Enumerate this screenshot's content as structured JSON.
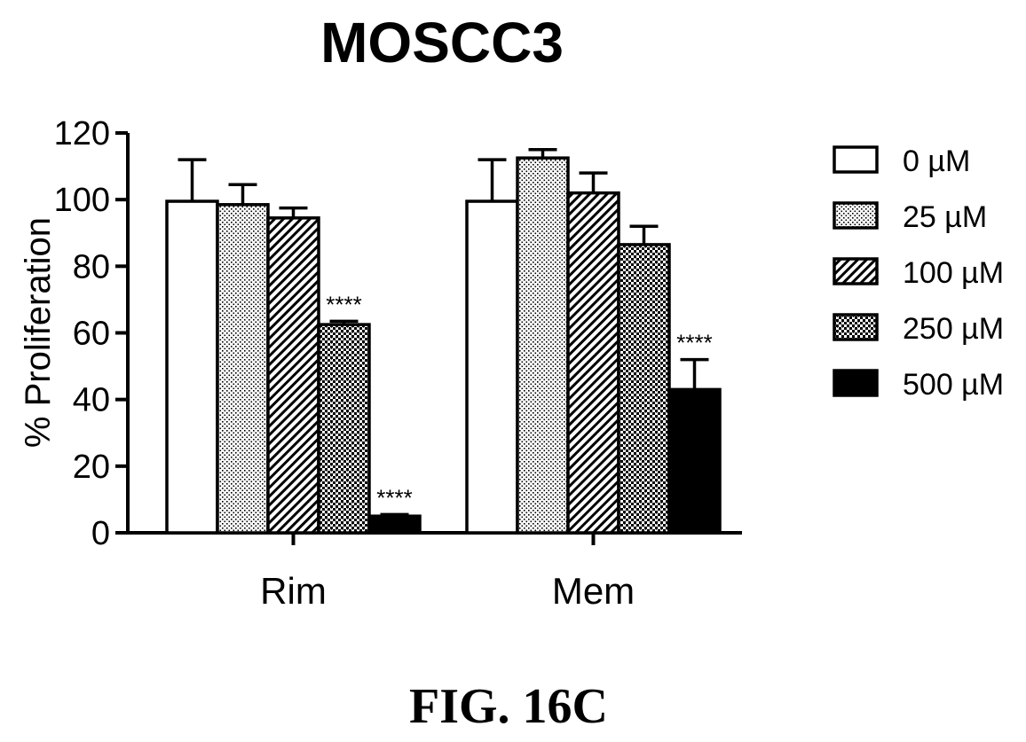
{
  "chart_data": {
    "type": "bar",
    "title": "MOSCC3",
    "ylabel": "% Proliferation",
    "xlabel": "",
    "ylim": [
      0,
      120
    ],
    "yticks": [
      "0",
      "20",
      "40",
      "60",
      "80",
      "100",
      "120"
    ],
    "categories": [
      "Rim",
      "Mem"
    ],
    "legend_position": "right",
    "series": [
      {
        "name": "0 µM",
        "pattern": "white",
        "values": [
          99.5,
          99.5
        ],
        "errors": [
          12.5,
          12.5
        ],
        "annotations": [
          "",
          ""
        ]
      },
      {
        "name": "25 µM",
        "pattern": "dots",
        "values": [
          98.5,
          112.5
        ],
        "errors": [
          6,
          2.5
        ],
        "annotations": [
          "",
          ""
        ]
      },
      {
        "name": "100 µM",
        "pattern": "diagonal",
        "values": [
          94.5,
          102
        ],
        "errors": [
          3,
          6
        ],
        "annotations": [
          "",
          ""
        ]
      },
      {
        "name": "250 µM",
        "pattern": "crosshatch",
        "values": [
          62.5,
          86.5
        ],
        "errors": [
          1,
          5.5
        ],
        "annotations": [
          "****",
          ""
        ]
      },
      {
        "name": "500 µM",
        "pattern": "black",
        "values": [
          5,
          43
        ],
        "errors": [
          0.5,
          9
        ],
        "annotations": [
          "****",
          "****"
        ]
      }
    ]
  },
  "caption": "FIG. 16C"
}
